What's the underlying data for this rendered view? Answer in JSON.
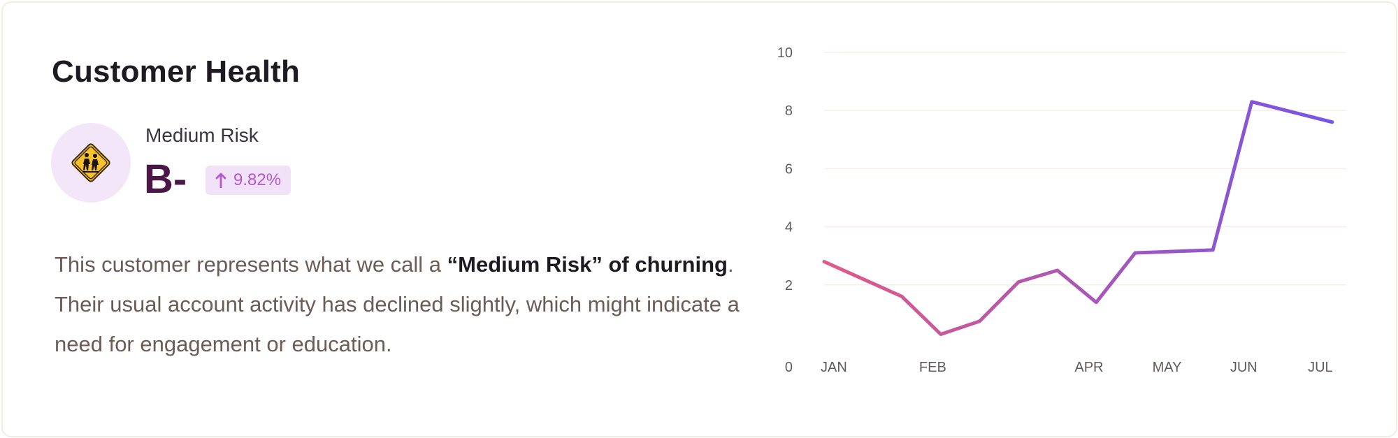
{
  "header": {
    "title": "Customer Health"
  },
  "health": {
    "icon": "school-crossing-warning-sign-icon",
    "risk_label": "Medium Risk",
    "grade": "B-",
    "change_direction": "up",
    "change_value": "9.82%"
  },
  "description": {
    "part1": "This customer represents what we call a ",
    "bold": "“Medium Risk” of churning",
    "part2": ". Their usual account activity has declined slightly, which might indicate a need for engagement or education."
  },
  "colors": {
    "grade": "#4a1746",
    "pill_bg": "#f1e2f8",
    "pill_text": "#b457d3",
    "line_start": "#e05a86",
    "line_end": "#7655e6",
    "grid": "#f6efe6"
  },
  "chart_data": {
    "type": "line",
    "title": "",
    "xlabel": "",
    "ylabel": "",
    "ylim": [
      0,
      10
    ],
    "yticks": [
      "0",
      "2",
      "4",
      "6",
      "8",
      "10"
    ],
    "xlim": [
      "2000-01-01",
      "2000-07-21"
    ],
    "xtick_labels": [
      {
        "label": "JAN",
        "date": "2000-01-01"
      },
      {
        "label": "FEB",
        "date": "2000-02-08"
      },
      {
        "label": "APR",
        "date": "2000-04-08"
      },
      {
        "label": "MAY",
        "date": "2000-05-08"
      },
      {
        "label": "JUN",
        "date": "2000-06-07"
      },
      {
        "label": "JUL",
        "date": "2000-07-07"
      }
    ],
    "grid": true,
    "legend": "none",
    "series": [
      {
        "x": [
          "2000-01-01",
          "2000-01-31",
          "2000-02-15",
          "2000-03-01",
          "2000-03-16",
          "2000-03-31",
          "2000-04-15",
          "2000-04-30",
          "2000-05-30",
          "2000-06-14",
          "2000-07-15"
        ],
        "y": [
          2.8,
          1.6,
          0.3,
          0.75,
          2.1,
          2.5,
          1.4,
          3.1,
          3.2,
          8.3,
          7.6
        ]
      }
    ]
  }
}
